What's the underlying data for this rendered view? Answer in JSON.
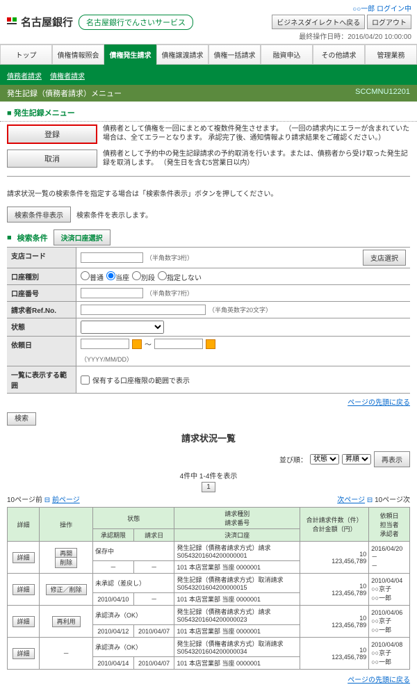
{
  "header": {
    "bank_name": "名古屋銀行",
    "service_name": "名古屋銀行でんさいサービス",
    "login_status": "○○一郎 ログイン中",
    "btn_back": "ビジネスダイレクトへ戻る",
    "btn_logout": "ログアウト",
    "last_op": "最終操作日時：2016/04/20 10:00:00"
  },
  "tabs": [
    "トップ",
    "債権情報照会",
    "債権発生請求",
    "債権譲渡請求",
    "債権一括請求",
    "融資申込",
    "その他請求",
    "管理業務"
  ],
  "active_tab": 2,
  "subnav": [
    "債務者請求",
    "債権者請求"
  ],
  "section": {
    "title": "発生記録（債務者請求）メニュー",
    "screen_id": "SCCMNU12201"
  },
  "menu": {
    "title": "発生記録メニュー",
    "items": [
      {
        "label": "登録",
        "highlight": true,
        "desc": "債務者として債権を一回にまとめて複数件発生させます。\n（一回の請求内にエラーが含まれていた場合は、全てエラーとなります。\n承認完了後、通知情報より請求結果をご確認ください。）"
      },
      {
        "label": "取消",
        "highlight": false,
        "desc": "債務者として予約中の発生記録請求の予約取消を行います。または、債務者から受け取った発生記録を取消します。\n（発生日を含む5営業日以内）"
      }
    ]
  },
  "instruction": "請求状況一覧の検索条件を指定する場合は「検索条件表示」ボタンを押してください。",
  "cond_btn": "検索条件非表示",
  "cond_note": "検索条件を表示します。",
  "search": {
    "title": "検索条件",
    "account_btn": "決済口座選択",
    "branch_btn": "支店選択",
    "rows": [
      {
        "label": "支店コード",
        "type": "text",
        "hint": "（半角数字3桁）",
        "extra_btn": "支店選択"
      },
      {
        "label": "口座種別",
        "type": "radio",
        "options": [
          "普通",
          "当座",
          "別段",
          "指定しない"
        ],
        "selected": 1
      },
      {
        "label": "口座番号",
        "type": "text",
        "hint": "（半角数字7桁）"
      },
      {
        "label": "請求者Ref.No.",
        "type": "text",
        "hint": "（半角英数字20文字）",
        "wide": true
      },
      {
        "label": "状態",
        "type": "select"
      },
      {
        "label": "依頼日",
        "type": "date",
        "hint": "（YYYY/MM/DD）"
      },
      {
        "label": "一覧に表示する範囲",
        "type": "check",
        "check_label": "保有する口座権限の範囲で表示"
      }
    ],
    "page_link": "ページの先頭に戻る",
    "search_btn": "検索"
  },
  "list": {
    "title": "請求状況一覧",
    "sort_label": "並び順：",
    "sort_opts": [
      "状態",
      "昇順"
    ],
    "redisplay": "再表示",
    "count": "4件中 1-4件を表示",
    "prev10": "10ページ前",
    "prev": "前ページ",
    "next": "次ページ",
    "next10": "10ページ次",
    "headers": {
      "detail": "詳細",
      "op": "操作",
      "status": "状態",
      "approve_due": "承認期限",
      "req_date": "請求日",
      "req_type": "請求種別\n請求番号",
      "account": "決済口座",
      "total": "合計請求件数（件）\n合計金額（円）",
      "dep": "依頼日\n担当者\n承認者"
    },
    "detail_btn": "詳細",
    "rows": [
      {
        "ops": [
          "再開",
          "削除"
        ],
        "status": "保存中",
        "approve": "－",
        "reqdate": "－",
        "type": "発生記録（債務者請求方式）請求",
        "num": "S0543201604200000001",
        "acct": "101 本店営業部 当座 0000001",
        "cnt": "10",
        "amt": "123,456,789",
        "dep_date": "2016/04/20",
        "person": "－",
        "approver": "－"
      },
      {
        "ops": [
          "修正／削除"
        ],
        "status": "未承認（差戻し）",
        "approve": "2010/04/10",
        "reqdate": "－",
        "type": "発生記録（債務者請求方式）取消請求",
        "num": "S0543201604200000015",
        "acct": "101 本店営業部 当座 0000001",
        "cnt": "10",
        "amt": "123,456,789",
        "dep_date": "2010/04/04",
        "person": "○○京子",
        "approver": "○○一郎"
      },
      {
        "ops": [
          "再利用"
        ],
        "status": "承認済み（OK）",
        "approve": "2010/04/12",
        "reqdate": "2010/04/07",
        "type": "発生記録（債務者請求方式）請求",
        "num": "S0543201604200000023",
        "acct": "101 本店営業部 当座 0000001",
        "cnt": "10",
        "amt": "123,456,789",
        "dep_date": "2010/04/06",
        "person": "○○京子",
        "approver": "○○一郎"
      },
      {
        "ops": [
          "－"
        ],
        "status": "承認済み（OK）",
        "approve": "2010/04/14",
        "reqdate": "2010/04/07",
        "type": "発生記録（債権者請求方式）取消請求",
        "num": "S0543201604200000034",
        "acct": "101 本店営業部 当座 0000001",
        "cnt": "10",
        "amt": "123,456,789",
        "dep_date": "2010/04/08",
        "person": "○○京子",
        "approver": "○○一郎"
      }
    ],
    "page_link": "ページの先頭に戻る"
  }
}
